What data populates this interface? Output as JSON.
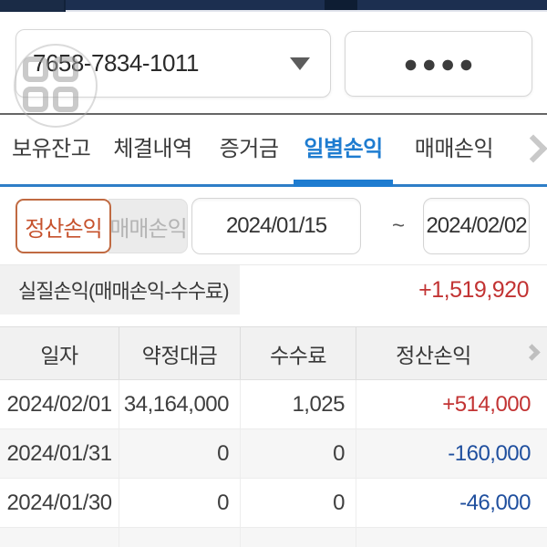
{
  "account": {
    "number": "7658-7834-1011",
    "password_mask": "●●●●"
  },
  "tabs": {
    "items": [
      "보유잔고",
      "체결내역",
      "증거금",
      "일별손익",
      "매매손익"
    ],
    "selected": "일별손익"
  },
  "filter": {
    "settlement_label": "정산손익",
    "trading_label": "매매손익",
    "selected": "정산손익",
    "date_from": "2024/01/15",
    "range_separator": "~",
    "date_to": "2024/02/02"
  },
  "summary": {
    "label": "실질손익(매매손익-수수료)",
    "value": "+1,519,920"
  },
  "table": {
    "headers": [
      "일자",
      "약정대금",
      "수수료",
      "정산손익"
    ],
    "rows": [
      {
        "date": "2024/02/01",
        "amount": "34,164,000",
        "fee": "1,025",
        "profit": "+514,000"
      },
      {
        "date": "2024/01/31",
        "amount": "0",
        "fee": "0",
        "profit": "-160,000"
      },
      {
        "date": "2024/01/30",
        "amount": "0",
        "fee": "0",
        "profit": "-46,000"
      }
    ]
  },
  "colors": {
    "top_bar_navy": "#1c2f50",
    "accent_blue": "#1e7cd0",
    "profit_red": "#c23333",
    "loss_blue": "#1f4f9e",
    "selected_orange": "#c6512c"
  }
}
